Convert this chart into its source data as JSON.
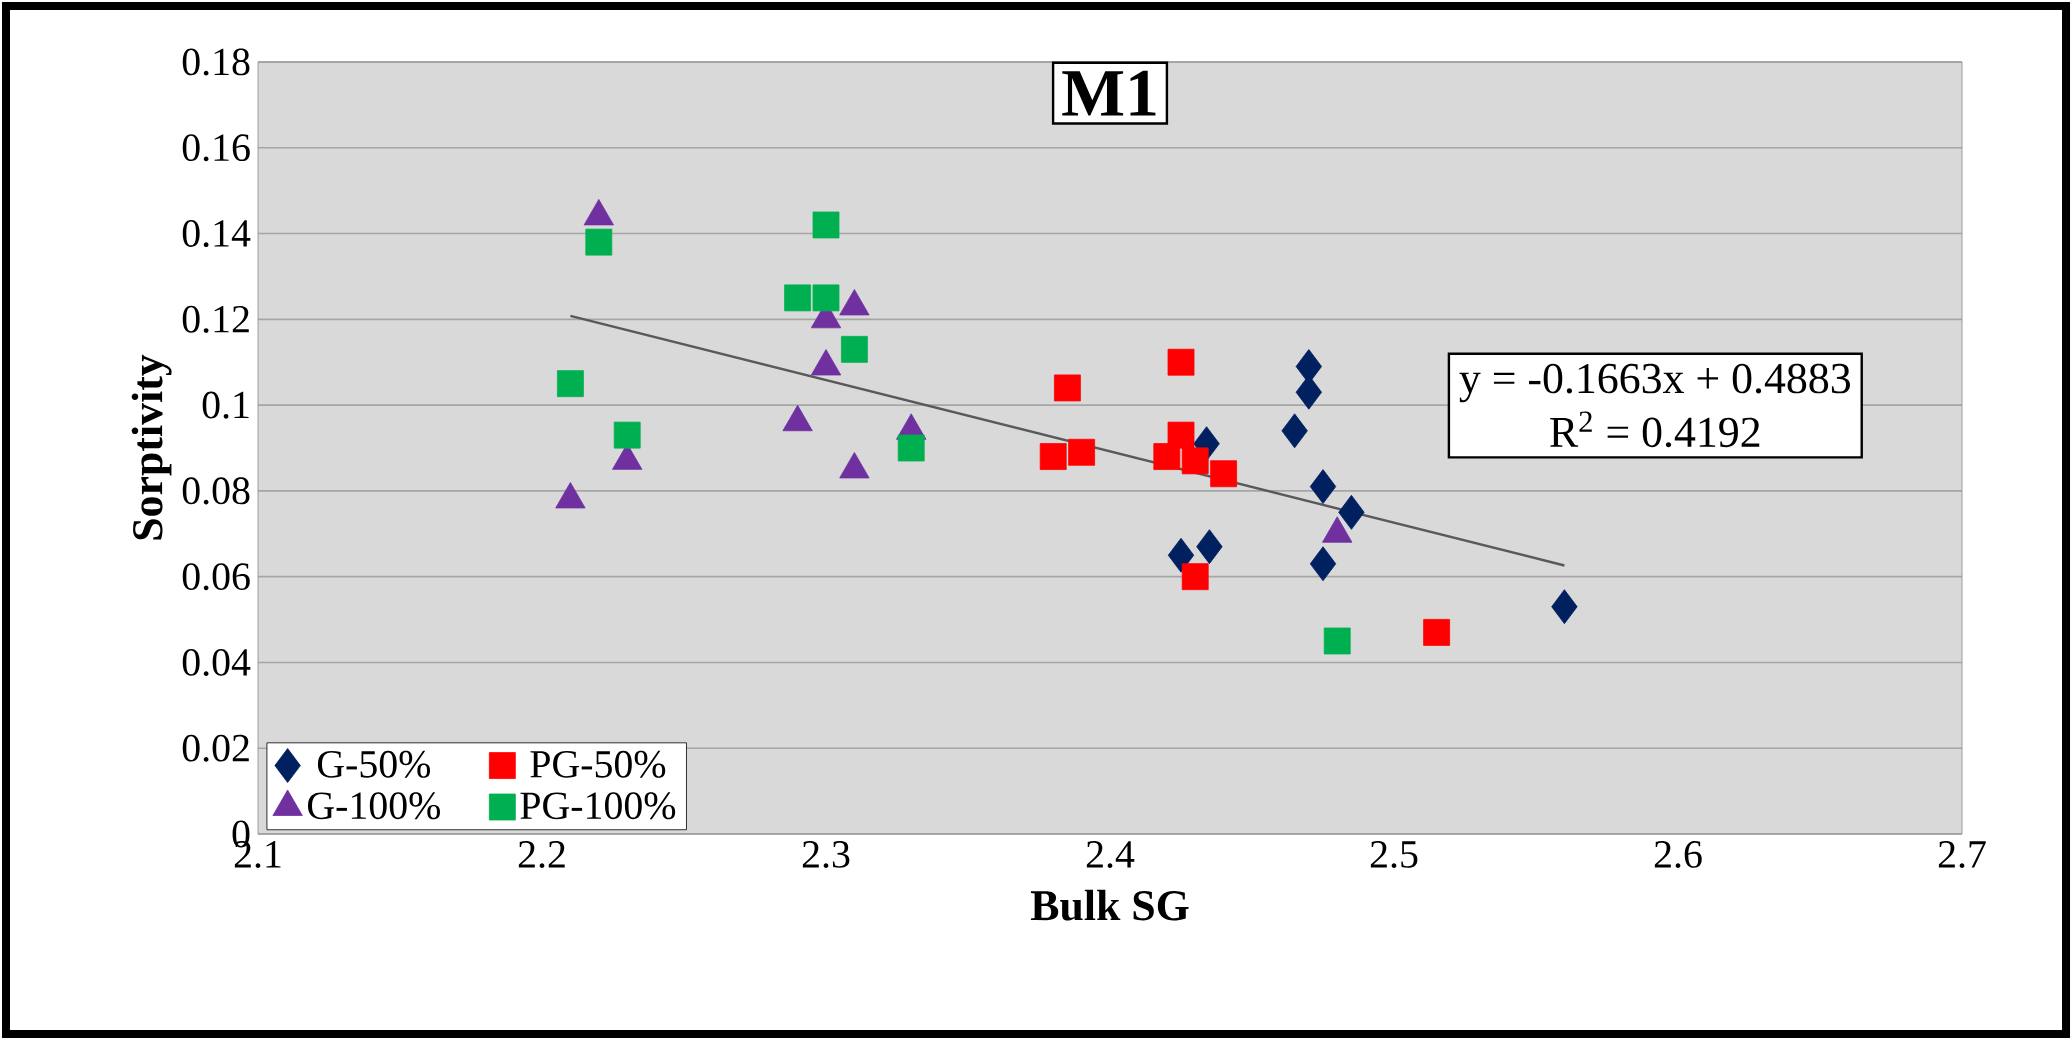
{
  "chart_data": {
    "type": "scatter",
    "title": "M1",
    "xlabel": "Bulk SG",
    "ylabel": "Sorptivity",
    "annotations": [
      "y = -0.1663x + 0.4883",
      "R$^{2}$ = 0.4192"
    ],
    "xlim": [
      2.1,
      2.7
    ],
    "ylim": [
      0,
      0.18
    ],
    "xticks": [
      2.1,
      2.2,
      2.3,
      2.4,
      2.5,
      2.6,
      2.7
    ],
    "yticks": [
      0,
      0.02,
      0.04,
      0.06,
      0.08,
      0.1,
      0.12,
      0.14,
      0.16,
      0.18
    ],
    "grid": "y",
    "legend": "bottom left",
    "series": [
      {
        "name": "G-50%",
        "color": "#002060",
        "marker": "diamond",
        "x": [
          2.47,
          2.47,
          2.465,
          2.475,
          2.485,
          2.475,
          2.425,
          2.435,
          2.434,
          2.56
        ],
        "values": [
          0.109,
          0.103,
          0.094,
          0.081,
          0.075,
          0.063,
          0.065,
          0.067,
          0.091,
          0.053
        ]
      },
      {
        "name": "PG-50%",
        "color": "#ff0000",
        "marker": "square",
        "x": [
          2.425,
          2.385,
          2.38,
          2.39,
          2.42,
          2.425,
          2.43,
          2.44,
          2.43,
          2.515
        ],
        "values": [
          0.11,
          0.104,
          0.088,
          0.089,
          0.088,
          0.093,
          0.087,
          0.084,
          0.06,
          0.047
        ]
      },
      {
        "name": "G-100%",
        "color": "#7030a0",
        "marker": "triangle",
        "x": [
          2.22,
          2.3,
          2.31,
          2.3,
          2.29,
          2.33,
          2.23,
          2.31,
          2.21,
          2.48
        ],
        "values": [
          0.144,
          0.12,
          0.123,
          0.109,
          0.096,
          0.094,
          0.087,
          0.085,
          0.078,
          0.07
        ]
      },
      {
        "name": "PG-100%",
        "color": "#00b050",
        "marker": "square",
        "x": [
          2.22,
          2.3,
          2.29,
          2.3,
          2.31,
          2.21,
          2.23,
          2.33,
          2.48
        ],
        "values": [
          0.138,
          0.142,
          0.125,
          0.125,
          0.113,
          0.105,
          0.093,
          0.09,
          0.045
        ]
      },
      {
        "type": "line",
        "color": "#595959",
        "marker": "none",
        "line_style": "solid",
        "x": [
          2.21,
          2.56
        ],
        "values": [
          0.1208,
          0.0626
        ]
      }
    ]
  }
}
